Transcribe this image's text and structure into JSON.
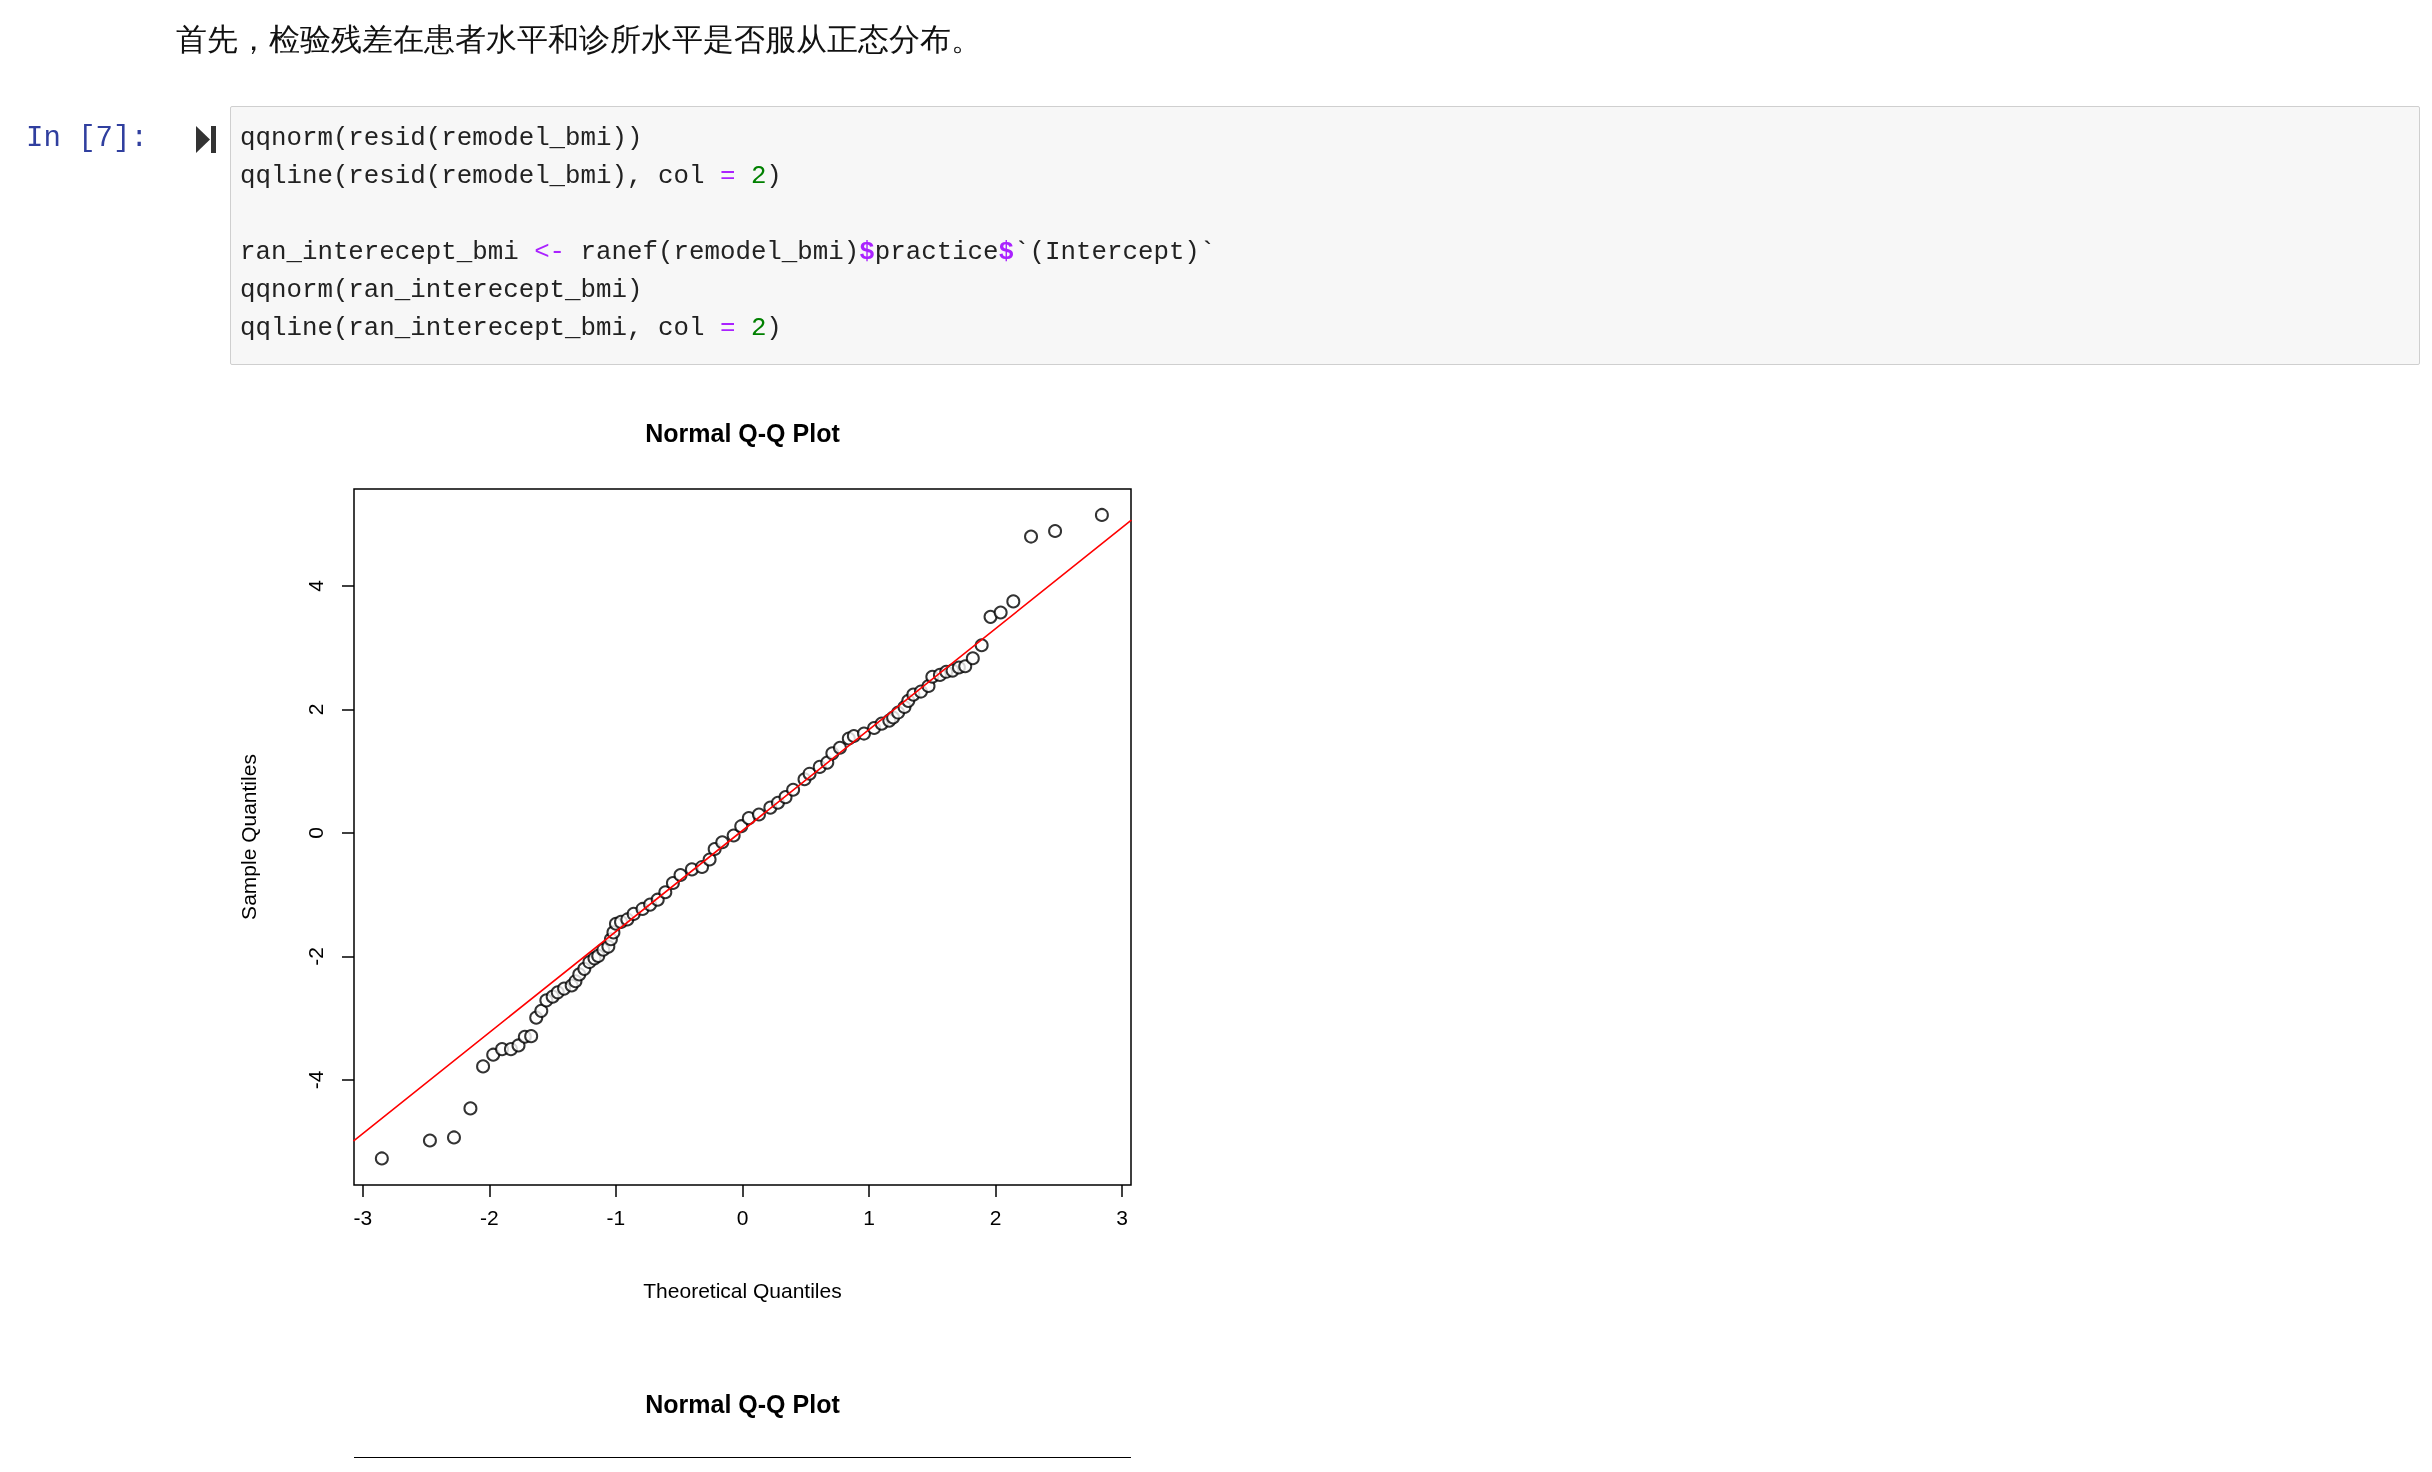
{
  "chart_data": [
    {
      "type": "scatter",
      "title": "Normal Q-Q Plot",
      "xlabel": "Theoretical Quantiles",
      "ylabel": "Sample Quantiles",
      "annotations": [
        "首先，检验残差在患者水平和诊所水平是否服从正态分布。",
        "In [7]:",
        "qqnorm(resid(remodel_bmi))\nqqline(resid(remodel_bmi), col = 2)\n\nran_interecept_bmi <- ranef(remodel_bmi)$practice$`(Intercept)`\nqqnorm(ran_interecept_bmi)\nqqline(ran_interecept_bmi, col = 2)"
      ],
      "xlim": [
        -3.07,
        3.07
      ],
      "xticks": [
        -3,
        -2,
        -1,
        0,
        1,
        2,
        3
      ],
      "ylim": [
        -5.7,
        5.57
      ],
      "yticks": [
        -4,
        -2,
        0,
        2,
        4
      ],
      "grid": false,
      "marker": "circle",
      "series": [
        {
          "color": "#000000",
          "x": [
            -2.85,
            -2.47,
            -2.28,
            -2.15,
            -2.05,
            -1.97,
            -1.9,
            -1.83,
            -1.77,
            -1.72,
            -1.67,
            -1.63,
            -1.59,
            -1.55,
            -1.5,
            -1.46,
            -1.41,
            -1.35,
            -1.32,
            -1.29,
            -1.25,
            -1.21,
            -1.17,
            -1.14,
            -1.1,
            -1.06,
            -1.04,
            -1.02,
            -1.0,
            -0.96,
            -0.91,
            -0.86,
            -0.79,
            -0.73,
            -0.67,
            -0.61,
            -0.55,
            -0.49,
            -0.4,
            -0.32,
            -0.26,
            -0.22,
            -0.16,
            -0.07,
            -0.01,
            0.05,
            0.13,
            0.22,
            0.28,
            0.34,
            0.4,
            0.49,
            0.53,
            0.61,
            0.67,
            0.71,
            0.77,
            0.84,
            0.88,
            0.96,
            1.04,
            1.1,
            1.16,
            1.19,
            1.23,
            1.28,
            1.31,
            1.35,
            1.41,
            1.47,
            1.5,
            1.56,
            1.61,
            1.66,
            1.71,
            1.76,
            1.82,
            1.89,
            1.96,
            2.04,
            2.14,
            2.28,
            2.47,
            2.84
          ],
          "values": [
            -5.27,
            -4.98,
            -4.93,
            -4.46,
            -3.78,
            -3.59,
            -3.5,
            -3.5,
            -3.44,
            -3.3,
            -3.29,
            -2.99,
            -2.88,
            -2.71,
            -2.65,
            -2.58,
            -2.52,
            -2.47,
            -2.4,
            -2.29,
            -2.2,
            -2.09,
            -2.03,
            -1.99,
            -1.89,
            -1.84,
            -1.72,
            -1.61,
            -1.47,
            -1.44,
            -1.4,
            -1.31,
            -1.23,
            -1.16,
            -1.08,
            -0.96,
            -0.81,
            -0.68,
            -0.59,
            -0.55,
            -0.43,
            -0.26,
            -0.15,
            -0.04,
            0.11,
            0.24,
            0.3,
            0.41,
            0.49,
            0.58,
            0.7,
            0.87,
            0.96,
            1.07,
            1.14,
            1.29,
            1.38,
            1.53,
            1.57,
            1.61,
            1.7,
            1.77,
            1.82,
            1.87,
            1.95,
            2.04,
            2.14,
            2.24,
            2.29,
            2.38,
            2.53,
            2.56,
            2.61,
            2.63,
            2.68,
            2.7,
            2.83,
            3.04,
            3.5,
            3.57,
            3.75,
            4.8,
            4.89,
            5.15
          ]
        },
        {
          "type": "line",
          "marker": "none",
          "color": "#ff0000",
          "x": [
            -3.07,
            3.07
          ],
          "values": [
            -4.98,
            5.06
          ]
        }
      ]
    },
    {
      "type": "other",
      "title": "Normal Q-Q Plot"
    }
  ]
}
